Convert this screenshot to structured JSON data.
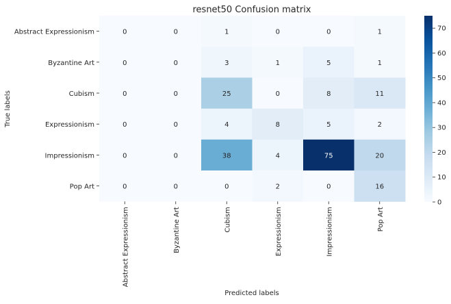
{
  "chart_data": {
    "type": "heatmap",
    "title": "resnet50 Confusion matrix",
    "xlabel": "Predicted labels",
    "ylabel": "True labels",
    "x_categories": [
      "Abstract Expressionism",
      "Byzantine Art",
      "Cubism",
      "Expressionism",
      "Impressionism",
      "Pop Art"
    ],
    "y_categories": [
      "Abstract Expressionism",
      "Byzantine Art",
      "Cubism",
      "Expressionism",
      "Impressionism",
      "Pop Art"
    ],
    "values": [
      [
        0,
        0,
        1,
        0,
        0,
        1
      ],
      [
        0,
        0,
        3,
        1,
        5,
        1
      ],
      [
        0,
        0,
        25,
        0,
        8,
        11
      ],
      [
        0,
        0,
        4,
        8,
        5,
        2
      ],
      [
        0,
        0,
        38,
        4,
        75,
        20
      ],
      [
        0,
        0,
        0,
        2,
        0,
        16
      ]
    ],
    "colormap": "Blues",
    "colorbar": {
      "range": [
        0,
        75
      ],
      "ticks": [
        "0",
        "10",
        "20",
        "30",
        "40",
        "50",
        "60",
        "70"
      ]
    },
    "colors": {
      "low": "#f7fbff",
      "high": "#08306b",
      "text_dark": "#262626",
      "text_light": "#ffffff"
    }
  }
}
